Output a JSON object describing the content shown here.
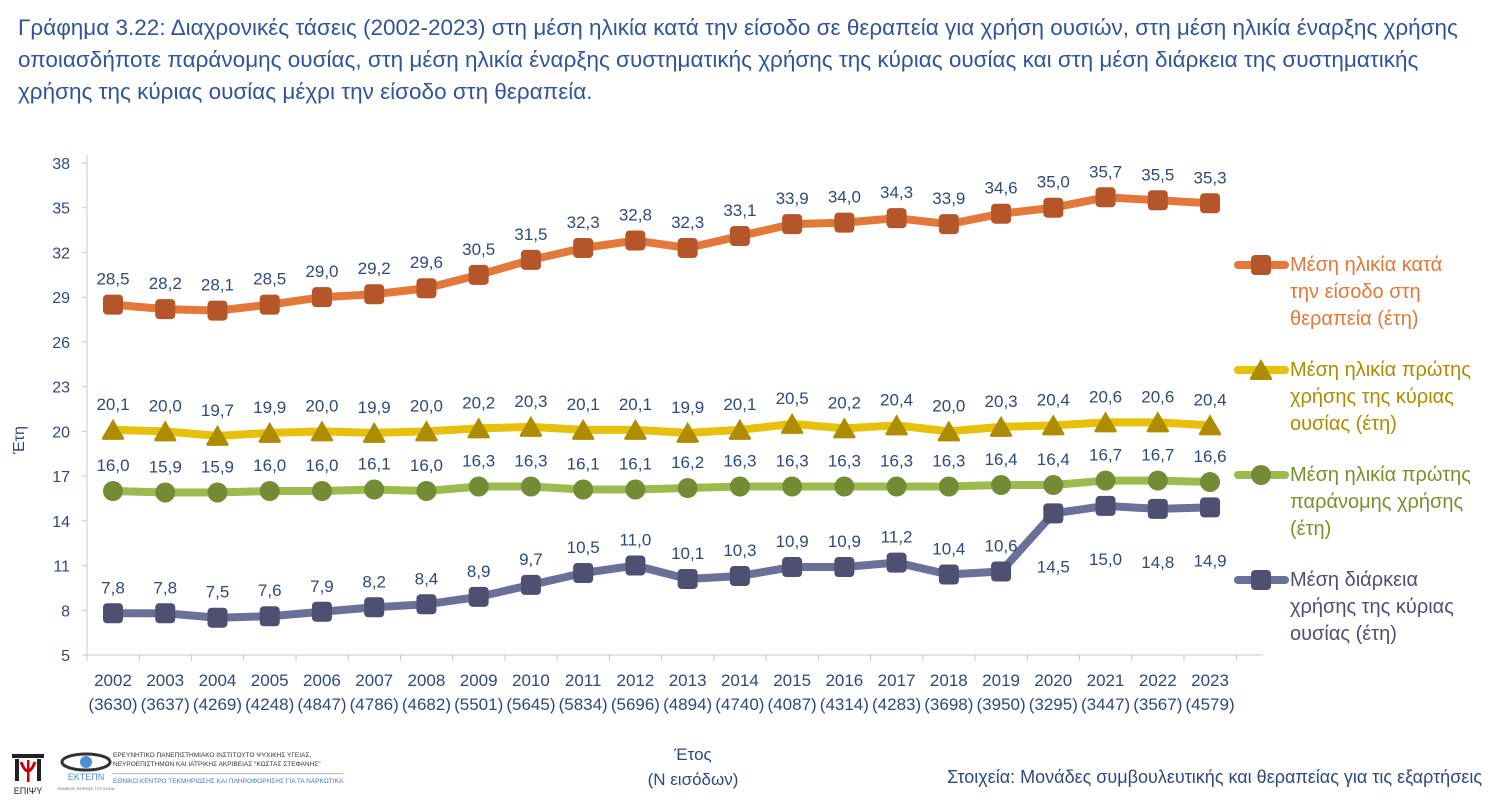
{
  "title": "Γράφημα 3.22: Διαχρονικές τάσεις (2002-2023) στη μέση ηλικία κατά την είσοδο σε θεραπεία για χρήση ουσιών, στη μέση ηλικία έναρξης χρήσης οποιασδήποτε παράνομης ουσίας, στη μέση ηλικία έναρξης συστηματικής χρήσης της κύριας ουσίας και στη μέση διάρκεια της συστηματικής χρήσης της κύριας ουσίας μέχρι την είσοδο στη θεραπεία.",
  "source": "Στοιχεία: Μονάδες συμβουλευτικής και θεραπείας για τις εξαρτήσεις",
  "logos": {
    "epipsy": "ΕΠΙΨΥ",
    "ektepn": "ΕΚΤΕΠΝ",
    "ektepn_sub": "ΕΘΝΙΚΟΣ ΦΟΡΕΑΣ ΤΟΥ EUDA",
    "institute_line1": "ΕΡΕΥΝΗΤΙΚΟ ΠΑΝΕΠΙΣΤΗΜΙΑΚΟ ΙΝΣΤΙΤΟΥΤΟ ΨΥΧΙΚΗΣ ΥΓΕΙΑΣ,",
    "institute_line2": "ΝΕΥΡΟΕΠΙΣΤΗΜΩΝ ΚΑΙ ΙΑΤΡΙΚΗΣ ΑΚΡΙΒΕΙΑΣ \"ΚΩΣΤΑΣ ΣΤΕΦΑΝΗΣ\"",
    "centre": "ΕΘΝΙΚΟ ΚΕΝΤΡΟ ΤΕΚΜΗΡΙΩΣΗΣ ΚΑΙ ΠΛΗΡΟΦΟΡΗΣΗΣ ΓΙΑ ΤΑ ΝΑΡΚΩΤΙΚΑ"
  },
  "chart_data": {
    "type": "line",
    "xlabel": "Έτος",
    "xlabel_sub": "(N εισόδων)",
    "ylabel": "Έτη",
    "ylim": [
      5,
      38
    ],
    "yticks": [
      5,
      8,
      11,
      14,
      17,
      20,
      23,
      26,
      29,
      32,
      35,
      38
    ],
    "grid": false,
    "legend_position": "right",
    "categories": [
      "2002",
      "2003",
      "2004",
      "2005",
      "2006",
      "2007",
      "2008",
      "2009",
      "2010",
      "2011",
      "2012",
      "2013",
      "2014",
      "2015",
      "2016",
      "2017",
      "2018",
      "2019",
      "2020",
      "2021",
      "2022",
      "2023"
    ],
    "n_entries": [
      "(3630)",
      "(3637)",
      "(4269)",
      "(4248)",
      "(4847)",
      "(4786)",
      "(4682)",
      "(5501)",
      "(5645)",
      "(5834)",
      "(5696)",
      "(4894)",
      "(4740)",
      "(4087)",
      "(4314)",
      "(4283)",
      "(3698)",
      "(3950)",
      "(3295)",
      "(3447)",
      "(3567)",
      "(4579)"
    ],
    "series": [
      {
        "name": "Μέση ηλικία κατά την είσοδο στη θεραπεία (έτη)",
        "marker": "square",
        "line_color": "#e2783a",
        "marker_color": "#b4562a",
        "text_color": "#e2783a",
        "values": [
          28.5,
          28.2,
          28.1,
          28.5,
          29.0,
          29.2,
          29.6,
          30.5,
          31.5,
          32.3,
          32.8,
          32.3,
          33.1,
          33.9,
          34.0,
          34.3,
          33.9,
          34.6,
          35.0,
          35.7,
          35.5,
          35.3
        ]
      },
      {
        "name": "Μέση ηλικία πρώτης χρήσης της κύριας ουσίας (έτη)",
        "marker": "triangle",
        "line_color": "#e6c00a",
        "marker_color": "#ad8c00",
        "text_color": "#ad8c00",
        "values": [
          20.1,
          20.0,
          19.7,
          19.9,
          20.0,
          19.9,
          20.0,
          20.2,
          20.3,
          20.1,
          20.1,
          19.9,
          20.1,
          20.5,
          20.2,
          20.4,
          20.0,
          20.3,
          20.4,
          20.6,
          20.6,
          20.4
        ]
      },
      {
        "name": "Μέση ηλικία πρώτης παράνομης χρήσης (έτη)",
        "marker": "circle",
        "line_color": "#9bbb4f",
        "marker_color": "#738b35",
        "text_color": "#7a8f2e",
        "values": [
          16.0,
          15.9,
          15.9,
          16.0,
          16.0,
          16.1,
          16.0,
          16.3,
          16.3,
          16.1,
          16.1,
          16.2,
          16.3,
          16.3,
          16.3,
          16.3,
          16.3,
          16.4,
          16.4,
          16.7,
          16.7,
          16.6
        ]
      },
      {
        "name": "Μέση διάρκεια χρήσης της κύριας ουσίας (έτη)",
        "marker": "square",
        "line_color": "#6b7099",
        "marker_color": "#4d5070",
        "text_color": "#4d5070",
        "values": [
          7.8,
          7.8,
          7.5,
          7.6,
          7.9,
          8.2,
          8.4,
          8.9,
          9.7,
          10.5,
          11.0,
          10.1,
          10.3,
          10.9,
          10.9,
          11.2,
          10.4,
          10.6,
          14.5,
          15.0,
          14.8,
          14.9
        ]
      }
    ],
    "legend_lines": [
      [
        "Μέση ηλικία κατά",
        "την είσοδο στη",
        "θεραπεία (έτη)"
      ],
      [
        "Μέση ηλικία πρώτης",
        "χρήσης της κύριας",
        "ουσίας (έτη)"
      ],
      [
        "Μέση ηλικία πρώτης",
        "παράνομης χρήσης",
        "(έτη)"
      ],
      [
        "Μέση διάρκεια",
        "χρήσης της κύριας",
        "ουσίας (έτη)"
      ]
    ]
  }
}
